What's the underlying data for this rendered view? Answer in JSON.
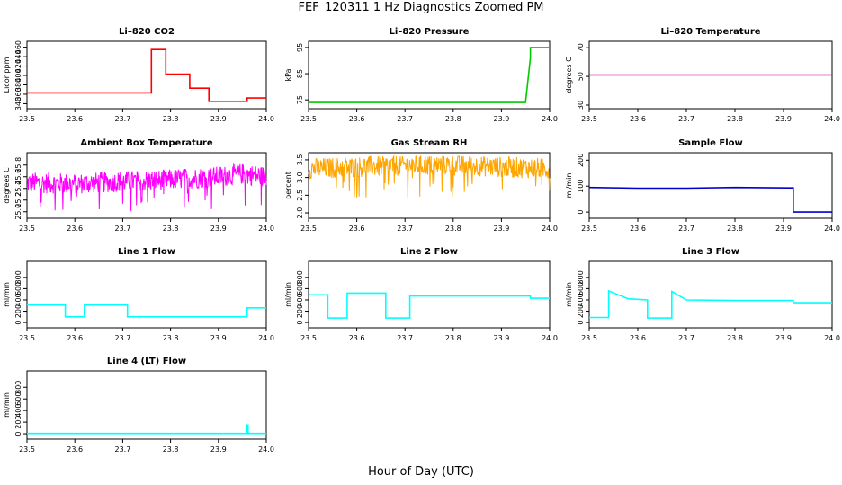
{
  "figure": {
    "title": "FEF_120311  1 Hz Diagnostics Zoomed PM",
    "xlabel": "Hour of Day (UTC)"
  },
  "chart_data": [
    {
      "type": "line",
      "title": "Li–820 CO2",
      "ylabel": "Licor ppm",
      "color": "#ff0000",
      "xticks": [
        "23.5",
        "23.6",
        "23.7",
        "23.8",
        "23.9",
        "24.0"
      ],
      "xlim": [
        23.5,
        24.0
      ],
      "yticks": [
        "340",
        "360",
        "380",
        "400",
        "420",
        "440",
        "460"
      ],
      "ylim": [
        337,
        465
      ],
      "x": [
        23.5,
        23.76,
        23.76,
        23.79,
        23.79,
        23.84,
        23.84,
        23.88,
        23.88,
        23.96,
        23.96,
        24.0
      ],
      "y": [
        363,
        363,
        455,
        455,
        403,
        403,
        373,
        373,
        345,
        345,
        352,
        352
      ]
    },
    {
      "type": "line",
      "title": "Li–820 Pressure",
      "ylabel": "kPa",
      "color": "#00cc00",
      "xticks": [
        "23.5",
        "23.6",
        "23.7",
        "23.8",
        "23.9",
        "24.0"
      ],
      "xlim": [
        23.5,
        24.0
      ],
      "yticks": [
        "75",
        "85",
        "95"
      ],
      "ylim": [
        73,
        96
      ],
      "x": [
        23.5,
        23.93,
        23.95,
        23.96,
        23.96,
        24.0
      ],
      "y": [
        74,
        74,
        74,
        91,
        95,
        95
      ]
    },
    {
      "type": "line",
      "title": "Li–820 Temperature",
      "ylabel": "degrees C",
      "color": "#cc0099",
      "xticks": [
        "23.5",
        "23.6",
        "23.7",
        "23.8",
        "23.9",
        "24.0"
      ],
      "xlim": [
        23.5,
        24.0
      ],
      "yticks": [
        "30",
        "50",
        "70"
      ],
      "ylim": [
        30,
        72
      ],
      "x": [
        23.5,
        24.0
      ],
      "y": [
        51,
        51
      ]
    },
    {
      "type": "line",
      "title": "Ambient Box Temperature",
      "ylabel": "degrees C",
      "color": "#ff00ff",
      "noise": true,
      "xticks": [
        "23.5",
        "23.6",
        "23.7",
        "23.8",
        "23.9",
        "24.0"
      ],
      "xlim": [
        23.5,
        24.0
      ],
      "yticks": [
        "25.0",
        "25.2",
        "25.4",
        "25.6",
        "25.8"
      ],
      "ylim": [
        24.95,
        25.95
      ],
      "x": [
        23.5,
        23.6,
        23.7,
        23.8,
        23.9,
        23.95,
        24.0
      ],
      "y": [
        25.5,
        25.48,
        25.52,
        25.55,
        25.6,
        25.65,
        25.6
      ]
    },
    {
      "type": "line",
      "title": "Gas Stream RH",
      "ylabel": "percent",
      "color": "#ffa500",
      "noise": true,
      "xticks": [
        "23.5",
        "23.6",
        "23.7",
        "23.8",
        "23.9",
        "24.0"
      ],
      "xlim": [
        23.5,
        24.0
      ],
      "yticks": [
        "2.0",
        "2.5",
        "3.0",
        "3.5"
      ],
      "ylim": [
        1.95,
        3.6
      ],
      "x": [
        23.5,
        23.6,
        23.7,
        23.8,
        23.9,
        24.0
      ],
      "y": [
        3.25,
        3.3,
        3.35,
        3.35,
        3.3,
        3.25
      ]
    },
    {
      "type": "line",
      "title": "Sample Flow",
      "ylabel": "ml/min",
      "color": "#0000cc",
      "xticks": [
        "23.5",
        "23.6",
        "23.7",
        "23.8",
        "23.9",
        "24.0"
      ],
      "xlim": [
        23.5,
        24.0
      ],
      "yticks": [
        "0",
        "100",
        "200"
      ],
      "ylim": [
        -10,
        215
      ],
      "x": [
        23.5,
        23.6,
        23.7,
        23.8,
        23.91,
        23.92,
        23.92,
        24.0
      ],
      "y": [
        95,
        92,
        92,
        95,
        93,
        93,
        0,
        0
      ]
    },
    {
      "type": "line",
      "title": "Line 1 Flow",
      "ylabel": "ml/min",
      "color": "#00ffff",
      "xticks": [
        "23.5",
        "23.6",
        "23.7",
        "23.8",
        "23.9",
        "24.0"
      ],
      "xlim": [
        23.5,
        24.0
      ],
      "yticks": [
        "0",
        "200",
        "400",
        "600",
        "800"
      ],
      "ylim": [
        -30,
        1020
      ],
      "x": [
        23.5,
        23.58,
        23.58,
        23.62,
        23.62,
        23.71,
        23.71,
        23.96,
        23.96,
        24.0
      ],
      "y": [
        310,
        310,
        100,
        100,
        310,
        310,
        100,
        100,
        260,
        260
      ]
    },
    {
      "type": "line",
      "title": "Line 2 Flow",
      "ylabel": "ml/min",
      "color": "#00ffff",
      "xticks": [
        "23.5",
        "23.6",
        "23.7",
        "23.8",
        "23.9",
        "24.0"
      ],
      "xlim": [
        23.5,
        24.0
      ],
      "yticks": [
        "0",
        "200",
        "400",
        "600",
        "800"
      ],
      "ylim": [
        -30,
        1020
      ],
      "x": [
        23.5,
        23.54,
        23.54,
        23.58,
        23.58,
        23.66,
        23.66,
        23.71,
        23.71,
        23.96,
        23.96,
        24.0
      ],
      "y": [
        490,
        490,
        80,
        80,
        520,
        520,
        80,
        80,
        470,
        470,
        430,
        430
      ]
    },
    {
      "type": "line",
      "title": "Line 3 Flow",
      "ylabel": "ml/min",
      "color": "#00ffff",
      "xticks": [
        "23.5",
        "23.6",
        "23.7",
        "23.8",
        "23.9",
        "24.0"
      ],
      "xlim": [
        23.5,
        24.0
      ],
      "yticks": [
        "0",
        "200",
        "400",
        "600",
        "800"
      ],
      "ylim": [
        -30,
        1020
      ],
      "x": [
        23.5,
        23.54,
        23.54,
        23.58,
        23.62,
        23.62,
        23.67,
        23.67,
        23.7,
        23.8,
        23.9,
        23.92,
        23.92,
        24.0
      ],
      "y": [
        90,
        90,
        560,
        420,
        400,
        80,
        80,
        550,
        400,
        390,
        390,
        390,
        350,
        350
      ]
    },
    {
      "type": "line",
      "title": "Line 4 (LT) Flow",
      "ylabel": "ml/min",
      "color": "#00ffff",
      "xticks": [
        "23.5",
        "23.6",
        "23.7",
        "23.8",
        "23.9",
        "24.0"
      ],
      "xlim": [
        23.5,
        24.0
      ],
      "yticks": [
        "0",
        "200",
        "400",
        "600",
        "800"
      ],
      "ylim": [
        -30,
        1020
      ],
      "x": [
        23.5,
        23.96,
        23.96,
        23.962,
        23.962,
        24.0
      ],
      "y": [
        5,
        5,
        150,
        150,
        5,
        5
      ]
    }
  ]
}
